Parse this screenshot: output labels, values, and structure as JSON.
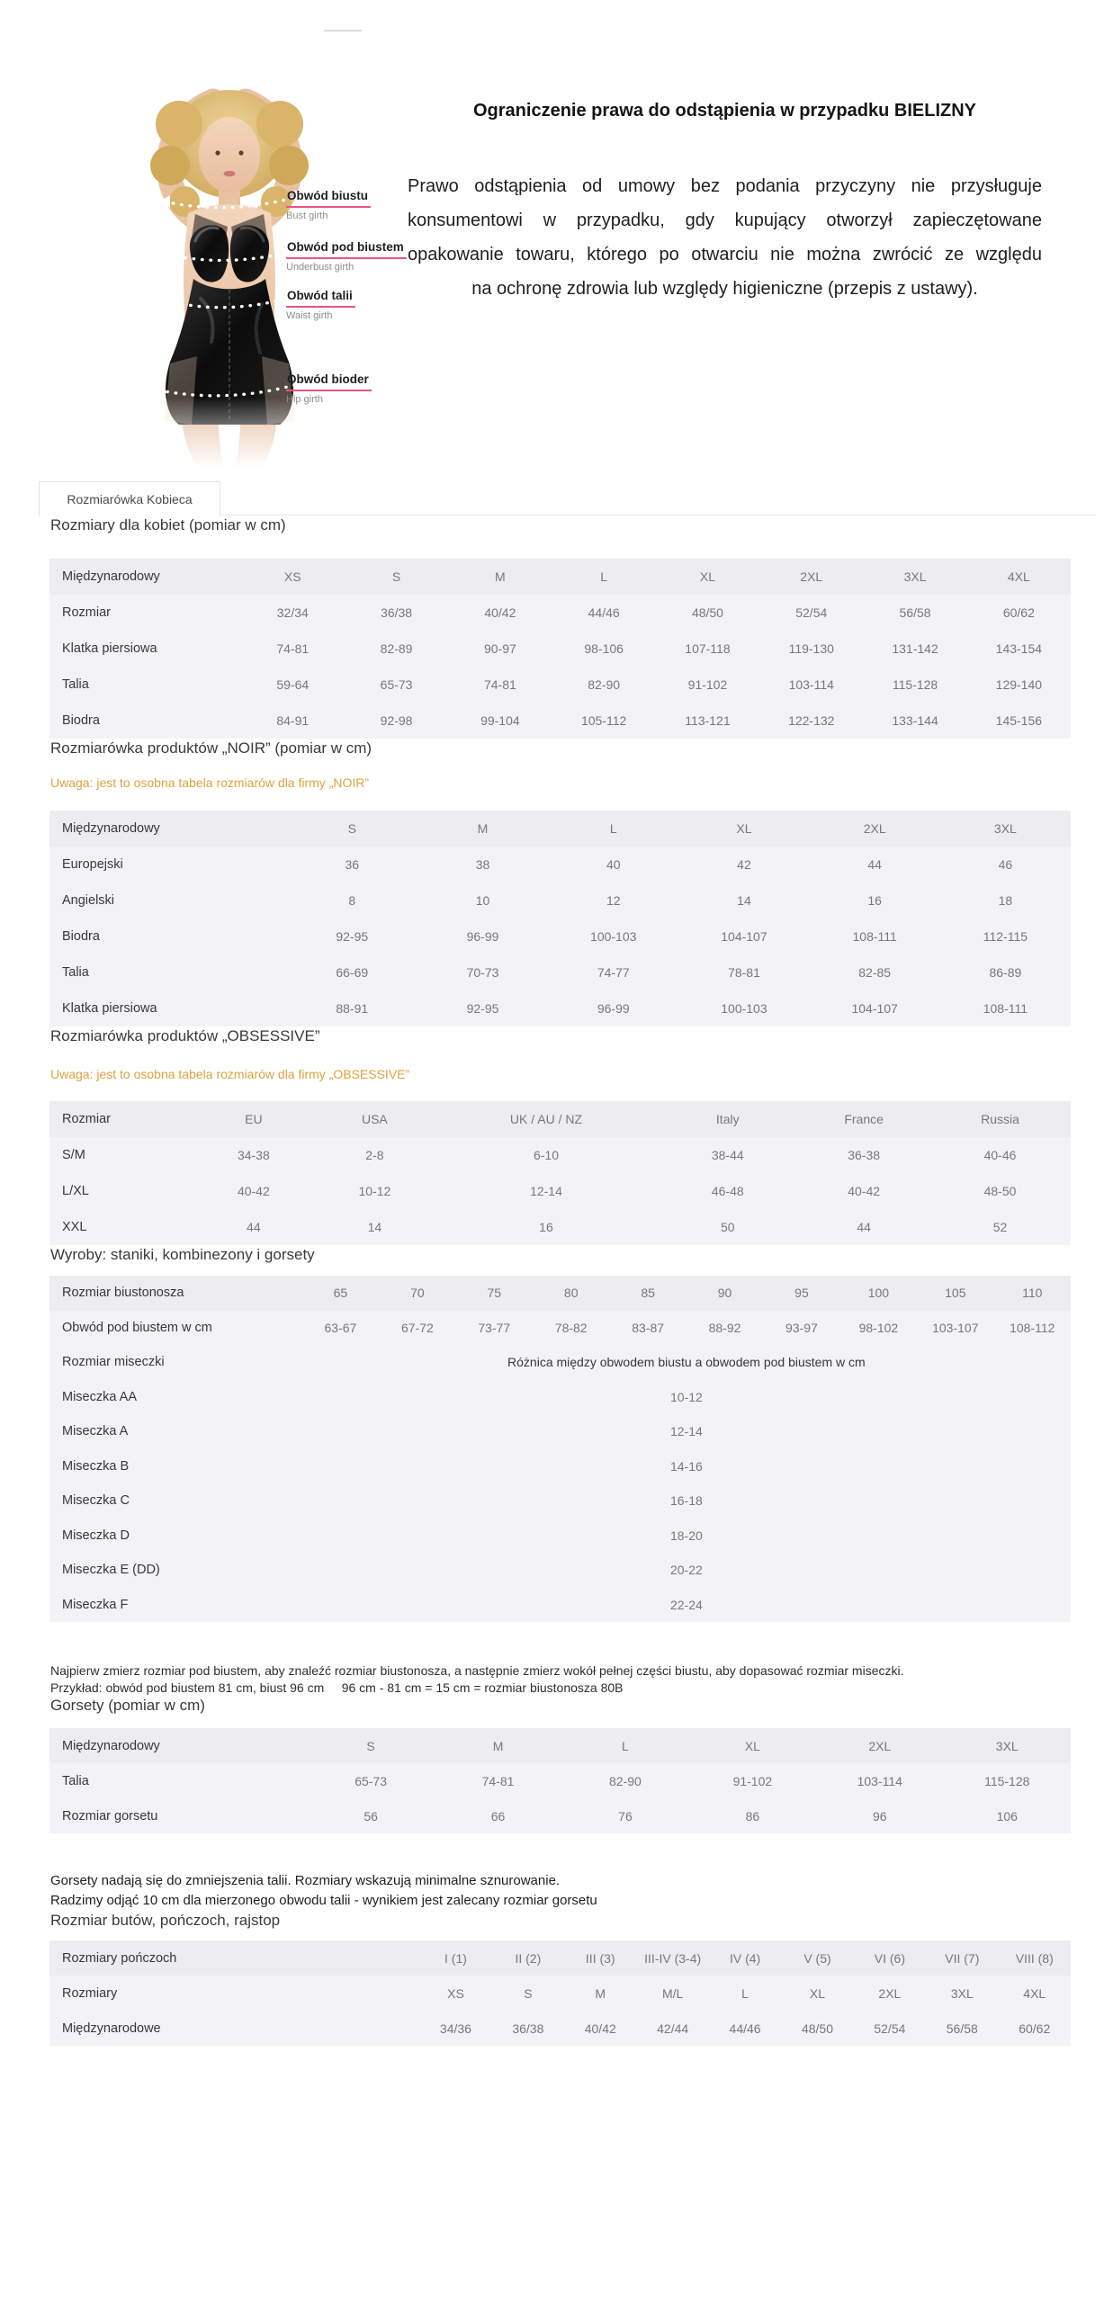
{
  "hero": {
    "figure_labels": [
      {
        "pl": "Obwód biustu",
        "en": "Bust girth"
      },
      {
        "pl": "Obwód pod biustem",
        "en": "Underbust girth"
      },
      {
        "pl": "Obwód talii",
        "en": "Waist girth"
      },
      {
        "pl": "Obwód bioder",
        "en": "Hip girth"
      }
    ],
    "notice": {
      "title": "Ograniczenie prawa do odstąpienia w przypadku BIELIZNY",
      "body_lines": [
        "Prawo odstąpienia od umowy bez podania przyczyny nie przysługuje",
        "konsumentowi w przypadku, gdy kupujący otworzył zapieczętowane",
        "opakowanie towaru, którego po otwarciu nie można zwrócić ze względu",
        "na ochronę zdrowia lub względy higieniczne (przepis z ustawy)."
      ]
    }
  },
  "tab": {
    "label": "Rozmiarówka Kobieca"
  },
  "colors": {
    "accent_pink": "#e85380",
    "note_orange": "#dda23f",
    "table_bg": "#f3f3f5"
  },
  "sections": {
    "women": {
      "heading": "Rozmiary dla kobiet (pomiar w cm)",
      "table": {
        "rows": [
          [
            "Międzynarodowy",
            "XS",
            "S",
            "M",
            "L",
            "XL",
            "2XL",
            "3XL",
            "4XL"
          ],
          [
            "Rozmiar",
            "32/34",
            "36/38",
            "40/42",
            "44/46",
            "48/50",
            "52/54",
            "56/58",
            "60/62"
          ],
          [
            "Klatka piersiowa",
            "74-81",
            "82-89",
            "90-97",
            "98-106",
            "107-118",
            "119-130",
            "131-142",
            "143-154"
          ],
          [
            "Talia",
            "59-64",
            "65-73",
            "74-81",
            "82-90",
            "91-102",
            "103-114",
            "115-128",
            "129-140"
          ],
          [
            "Biodra",
            "84-91",
            "92-98",
            "99-104",
            "105-112",
            "113-121",
            "122-132",
            "133-144",
            "145-156"
          ]
        ]
      }
    },
    "noir": {
      "heading": "Rozmiarówka produktów „NOIR” (pomiar w cm)",
      "note": "Uwaga: jest to osobna tabela rozmiarów dla firmy „NOIR”",
      "table": {
        "rows": [
          [
            "Międzynarodowy",
            "S",
            "M",
            "L",
            "XL",
            "2XL",
            "3XL"
          ],
          [
            "Europejski",
            "36",
            "38",
            "40",
            "42",
            "44",
            "46"
          ],
          [
            "Angielski",
            "8",
            "10",
            "12",
            "14",
            "16",
            "18"
          ],
          [
            "Biodra",
            "92-95",
            "96-99",
            "100-103",
            "104-107",
            "108-111",
            "112-115"
          ],
          [
            "Talia",
            "66-69",
            "70-73",
            "74-77",
            "78-81",
            "82-85",
            "86-89"
          ],
          [
            "Klatka piersiowa",
            "88-91",
            "92-95",
            "96-99",
            "100-103",
            "104-107",
            "108-111"
          ]
        ]
      }
    },
    "obsessive": {
      "heading": "Rozmiarówka produktów „OBSESSIVE”",
      "note": "Uwaga: jest to osobna tabela rozmiarów dla firmy „OBSESSIVE”",
      "table": {
        "rows": [
          [
            "Rozmiar",
            "EU",
            "USA",
            "UK / AU / NZ",
            "Italy",
            "France",
            "Russia"
          ],
          [
            "S/M",
            "34-38",
            "2-8",
            "6-10",
            "38-44",
            "36-38",
            "40-46"
          ],
          [
            "L/XL",
            "40-42",
            "10-12",
            "12-14",
            "46-48",
            "40-42",
            "48-50"
          ],
          [
            "XXL",
            "44",
            "14",
            "16",
            "50",
            "44",
            "52"
          ]
        ]
      }
    },
    "wyroby": {
      "heading": "Wyroby: staniki, kombinezony i gorsety",
      "table": {
        "rows": [
          [
            "Rozmiar biustonosza",
            "65",
            "70",
            "75",
            "80",
            "85",
            "90",
            "95",
            "100",
            "105",
            "110"
          ],
          [
            "Obwód pod biustem w cm",
            "63-67",
            "67-72",
            "73-77",
            "78-82",
            "83-87",
            "88-92",
            "93-97",
            "98-102",
            "103-107",
            "108-112"
          ],
          [
            "Rozmiar miseczki",
            {
              "text": "Różnica między obwodem biustu a obwodem pod biustem w cm",
              "span": 10,
              "dark": true
            }
          ],
          [
            "Miseczka AA",
            {
              "text": "10-12",
              "span": 10
            }
          ],
          [
            "Miseczka A",
            {
              "text": "12-14",
              "span": 10
            }
          ],
          [
            "Miseczka B",
            {
              "text": "14-16",
              "span": 10
            }
          ],
          [
            "Miseczka C",
            {
              "text": "16-18",
              "span": 10
            }
          ],
          [
            "Miseczka D",
            {
              "text": "18-20",
              "span": 10
            }
          ],
          [
            "Miseczka E  (DD)",
            {
              "text": "20-22",
              "span": 10
            }
          ],
          [
            "Miseczka F",
            {
              "text": "22-24",
              "span": 10
            }
          ]
        ]
      }
    },
    "bra_note_lines": [
      "Najpierw zmierz rozmiar pod biustem, aby znaleźć rozmiar biustonosza, a następnie zmierz wokół pełnej części biustu, aby dopasować rozmiar miseczki.",
      "Przykład: obwód pod biustem 81 cm, biust 96 cm     96 cm - 81 cm = 15 cm = rozmiar biustonosza 80B"
    ],
    "gorsety": {
      "heading": "Gorsety (pomiar w cm)",
      "table": {
        "rows": [
          [
            "Międzynarodowy",
            "S",
            "M",
            "L",
            "XL",
            "2XL",
            "3XL"
          ],
          [
            "Talia",
            "65-73",
            "74-81",
            "82-90",
            "91-102",
            "103-114",
            "115-128"
          ],
          [
            "Rozmiar gorsetu",
            "56",
            "66",
            "76",
            "86",
            "96",
            "106"
          ]
        ]
      }
    },
    "corset_note_lines": [
      "Gorsety nadają się do zmniejszenia talii. Rozmiary wskazują minimalne sznurowanie.",
      "Radzimy odjąć 10 cm dla mierzonego obwodu talii - wynikiem jest zalecany rozmiar gorsetu"
    ],
    "buty": {
      "heading": "Rozmiar butów, pończoch, rajstop",
      "table": {
        "rows": [
          [
            "Rozmiary pończoch",
            "I (1)",
            "II (2)",
            "III (3)",
            "III-IV (3-4)",
            "IV (4)",
            "V (5)",
            "VI (6)",
            "VII (7)",
            "VIII (8)"
          ],
          [
            "Rozmiary",
            "XS",
            "S",
            "M",
            "M/L",
            "L",
            "XL",
            "2XL",
            "3XL",
            "4XL"
          ],
          [
            "Międzynarodowe",
            "34/36",
            "36/38",
            "40/42",
            "42/44",
            "44/46",
            "48/50",
            "52/54",
            "56/58",
            "60/62"
          ]
        ]
      }
    }
  }
}
